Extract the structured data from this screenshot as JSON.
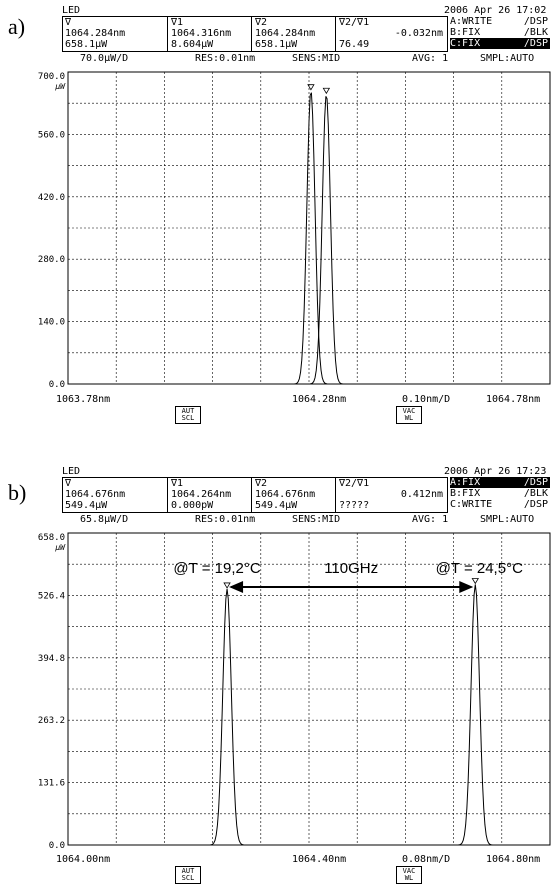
{
  "panels": [
    {
      "label": "a)",
      "led": "LED",
      "datetime": "2006 Apr 26 17:02",
      "markers": [
        {
          "head": "∇",
          "wl": "1064.284nm",
          "pw": "658.1µW"
        },
        {
          "head": "∇1",
          "wl": "1064.316nm",
          "pw": "8.604µW"
        },
        {
          "head": "∇2",
          "wl": "1064.284nm",
          "pw": "658.1µW"
        },
        {
          "head": "∇2/∇1",
          "wl": "-0.032nm",
          "pw": "76.49"
        }
      ],
      "traces": [
        {
          "name": "A:WRITE",
          "mode": "/DSP",
          "selected": false
        },
        {
          "name": "B:FIX",
          "mode": "/BLK",
          "selected": false
        },
        {
          "name": "C:FIX",
          "mode": "/DSP",
          "selected": true
        }
      ],
      "status": {
        "scale": "70.0µW/D",
        "res": "RES:0.01nm",
        "sens": "SENS:MID",
        "avg": "AVG:   1",
        "smpl": "SMPL:AUTO"
      },
      "bottom": {
        "left": "1063.78nm",
        "center": "1064.28nm",
        "span": "0.10nm/D",
        "right": "1064.78nm"
      },
      "buttons": {
        "aut": "AUT SCL",
        "vac": "VAC WL"
      },
      "chart_data": {
        "type": "line",
        "xlim": [
          1063.78,
          1064.78
        ],
        "ylim": [
          0,
          700
        ],
        "yticks": [
          "700.0",
          "560.0",
          "420.0",
          "280.0",
          "140.0",
          "0.0"
        ],
        "yunit": "µW",
        "grid": true,
        "series": [
          {
            "peak_x": 1064.284,
            "peak_y": 658.1,
            "width": 0.012
          },
          {
            "peak_x": 1064.316,
            "peak_y": 650.0,
            "width": 0.012
          }
        ]
      }
    },
    {
      "label": "b)",
      "led": "LED",
      "datetime": "2006 Apr 26 17:23",
      "markers": [
        {
          "head": "∇",
          "wl": "1064.676nm",
          "pw": "549.4µW"
        },
        {
          "head": "∇1",
          "wl": "1064.264nm",
          "pw": "0.000pW"
        },
        {
          "head": "∇2",
          "wl": "1064.676nm",
          "pw": "549.4µW"
        },
        {
          "head": "∇2/∇1",
          "wl": "0.412nm",
          "pw": "?????"
        }
      ],
      "traces": [
        {
          "name": "A:FIX",
          "mode": "/DSP",
          "selected": true
        },
        {
          "name": "B:FIX",
          "mode": "/BLK",
          "selected": false
        },
        {
          "name": "C:WRITE",
          "mode": "/DSP",
          "selected": false
        }
      ],
      "status": {
        "scale": "65.8µW/D",
        "res": "RES:0.01nm",
        "sens": "SENS:MID",
        "avg": "AVG:   1",
        "smpl": "SMPL:AUTO"
      },
      "bottom": {
        "left": "1064.00nm",
        "center": "1064.40nm",
        "span": "0.08nm/D",
        "right": "1064.80nm"
      },
      "buttons": {
        "aut": "AUT SCL",
        "vac": "VAC WL"
      },
      "annotations": {
        "left": "@T = 19,2°C",
        "middle": "110GHz",
        "right": "@T = 24,5°C"
      },
      "chart_data": {
        "type": "line",
        "xlim": [
          1064.0,
          1064.8
        ],
        "ylim": [
          0,
          658
        ],
        "yticks": [
          "658.0",
          "526.4",
          "394.8",
          "263.2",
          "131.6",
          "0.0"
        ],
        "yunit": "µW",
        "grid": true,
        "series": [
          {
            "peak_x": 1064.264,
            "peak_y": 540.0,
            "width": 0.01
          },
          {
            "peak_x": 1064.676,
            "peak_y": 549.4,
            "width": 0.01
          }
        ]
      }
    }
  ]
}
